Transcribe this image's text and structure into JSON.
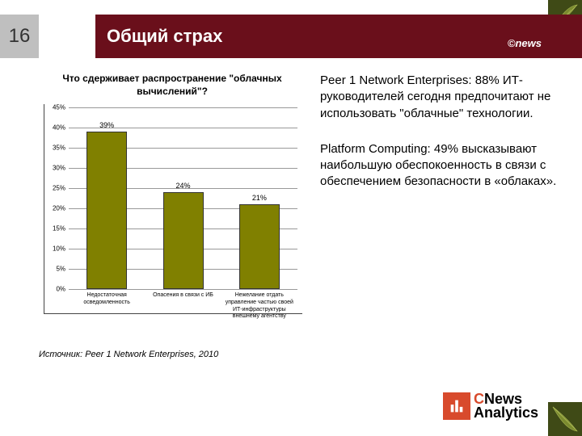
{
  "page_number": "16",
  "title": "Общий страх",
  "header_brand": "©news",
  "chart": {
    "title": "Что сдерживает распространение \"облачных вычислений\"?",
    "type": "bar",
    "ylim": [
      0,
      45
    ],
    "ytick_step": 5,
    "yticks": [
      "0%",
      "5%",
      "10%",
      "15%",
      "20%",
      "25%",
      "30%",
      "35%",
      "40%",
      "45%"
    ],
    "bar_color": "#808000",
    "bars": [
      {
        "label": "Недостаточная осведомленность",
        "value": 39,
        "display": "39%"
      },
      {
        "label": "Опасения в связи с ИБ",
        "value": 24,
        "display": "24%"
      },
      {
        "label": "Нежелание отдать управление частью своей ИТ-инфраструктуры внешнему агентству",
        "value": 21,
        "display": "21%"
      }
    ]
  },
  "source": "Источник: Peer 1 Network Enterprises, 2010",
  "paragraphs": [
    "Peer 1 Network Enterprises: 88% ИТ-руководителей сегодня предпочитают не использовать \"облачные\" технологии.",
    "Platform Computing: 49% высказывают наибольшую обеспокоенность в связи с обеспечением безопасности в «облаках»."
  ],
  "footer_logo": {
    "c": "C",
    "news": "News",
    "analytics": "Analytics"
  },
  "colors": {
    "header_bg": "#6a0f1b",
    "pagenum_bg": "#bfbfbf",
    "accent": "#d84a2c",
    "leaf": "#5a6b1e"
  }
}
